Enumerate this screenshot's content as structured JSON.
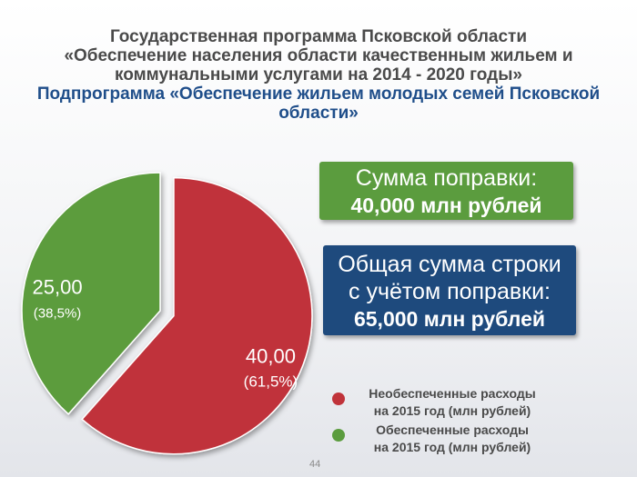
{
  "header": {
    "title_lines": [
      "Государственная программа Псковской области",
      "«Обеспечение населения области качественным жильем и",
      "коммунальными услугами на 2014 - 2020 годы»"
    ],
    "subtitle_lines": [
      "Подпрограмма «Обеспечение жильем молодых семей Псковской",
      "области»"
    ]
  },
  "info_green": {
    "line1": "Сумма поправки:",
    "line2": "40,000 млн рублей",
    "color": "#5b9c3e"
  },
  "info_blue": {
    "line1": "Общая сумма строки",
    "line2": "с учётом поправки:",
    "line3": "65,000 млн рублей",
    "color": "#1e4a7d"
  },
  "chart_data": {
    "type": "pie",
    "slices": [
      {
        "label": "Необеспеченные расходы на 2015 год (млн рублей)",
        "value": 40.0,
        "value_label": "40,00",
        "percent_label": "(61,5%)",
        "color": "#c0333a",
        "exploded": true
      },
      {
        "label": "Обеспеченные расходы на 2015 год (млн рублей)",
        "value": 25.0,
        "value_label": "25,00",
        "percent_label": "(38,5%)",
        "color": "#5b9c3e",
        "exploded": false
      }
    ],
    "legend_placement": "bottom-right"
  },
  "legend": {
    "items": [
      {
        "line1": "Необеспеченные расходы",
        "line2": "на 2015 год  (млн рублей)",
        "color": "#c0333a"
      },
      {
        "line1": "Обеспеченные расходы",
        "line2": "на 2015 год (млн рублей)",
        "color": "#5b9c3e"
      }
    ]
  },
  "page_number": "44"
}
